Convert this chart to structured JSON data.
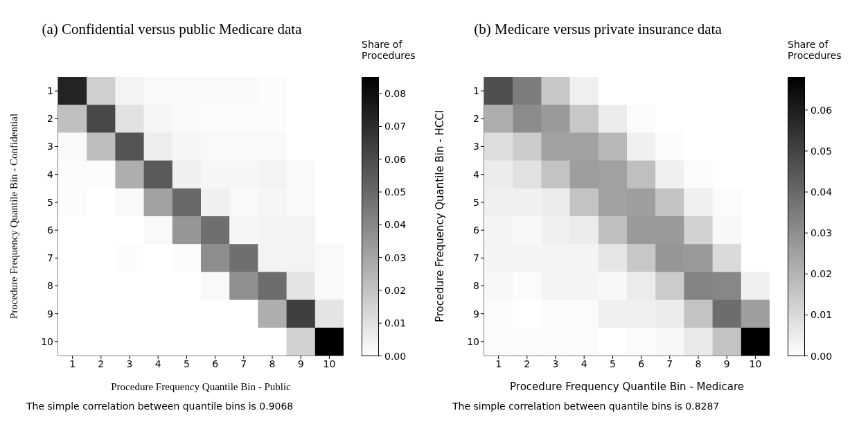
{
  "chart_data": [
    {
      "type": "heatmap",
      "title": "(a) Confidential versus public Medicare data",
      "xlabel": "Procedure Frequency Quantile Bin - Public",
      "ylabel": "Procedure Frequency Quantile Bin - Confidential",
      "clabel": "Share of Procedures",
      "categories": [
        "1",
        "2",
        "3",
        "4",
        "5",
        "6",
        "7",
        "8",
        "9",
        "10"
      ],
      "y_categories": [
        "1",
        "2",
        "3",
        "4",
        "5",
        "6",
        "7",
        "8",
        "9",
        "10"
      ],
      "cells": [
        [
          0.073,
          0.016,
          0.004,
          0.002,
          0.002,
          0.002,
          0.002,
          0.001,
          0,
          0
        ],
        [
          0.021,
          0.061,
          0.01,
          0.003,
          0.002,
          0.001,
          0.001,
          0.001,
          0,
          0
        ],
        [
          0.002,
          0.022,
          0.057,
          0.006,
          0.003,
          0.002,
          0.002,
          0.002,
          0,
          0
        ],
        [
          0.001,
          0.001,
          0.027,
          0.055,
          0.005,
          0.003,
          0.003,
          0.004,
          0.002,
          0
        ],
        [
          0.001,
          0,
          0.002,
          0.031,
          0.05,
          0.005,
          0.002,
          0.003,
          0.002,
          0
        ],
        [
          0,
          0,
          0,
          0.002,
          0.035,
          0.048,
          0.003,
          0.004,
          0.004,
          0
        ],
        [
          0,
          0,
          0.001,
          0,
          0.001,
          0.038,
          0.048,
          0.004,
          0.004,
          0.002
        ],
        [
          0,
          0,
          0,
          0,
          0,
          0.002,
          0.037,
          0.049,
          0.009,
          0.002
        ],
        [
          0,
          0,
          0,
          0,
          0,
          0,
          0,
          0.027,
          0.064,
          0.009
        ],
        [
          0,
          0,
          0,
          0,
          0,
          0,
          0,
          0,
          0.015,
          0.085
        ]
      ],
      "clim": [
        0,
        0.085
      ],
      "cticks": [
        {
          "value": 0,
          "label": "0.00"
        },
        0.01,
        0.02,
        0.03,
        0.04,
        0.05,
        0.06,
        0.07,
        0.08
      ],
      "annotations": [
        "The simple correlation between quantile bins is 0.9068"
      ]
    },
    {
      "type": "heatmap",
      "title": "(b) Medicare versus private insurance data",
      "xlabel": "Procedure Frequency Quantile Bin - Medicare",
      "ylabel": "Procedure Frequency Quantile Bin - HCCI",
      "clabel": "Share of Procedures",
      "categories": [
        "1",
        "2",
        "3",
        "4",
        "5",
        "6",
        "7",
        "8",
        "9",
        "10"
      ],
      "y_categories": [
        "1",
        "2",
        "3",
        "4",
        "5",
        "6",
        "7",
        "8",
        "9",
        "10"
      ],
      "cells": [
        [
          0.047,
          0.035,
          0.015,
          0.004,
          0,
          0,
          0,
          0,
          0,
          0
        ],
        [
          0.022,
          0.031,
          0.027,
          0.015,
          0.005,
          0.001,
          0,
          0,
          0,
          0
        ],
        [
          0.009,
          0.014,
          0.025,
          0.025,
          0.019,
          0.004,
          0.001,
          0,
          0,
          0
        ],
        [
          0.005,
          0.008,
          0.016,
          0.026,
          0.025,
          0.017,
          0.004,
          0.001,
          0,
          0
        ],
        [
          0.004,
          0.004,
          0.005,
          0.016,
          0.025,
          0.026,
          0.016,
          0.004,
          0.001,
          0
        ],
        [
          0.003,
          0.002,
          0.004,
          0.005,
          0.017,
          0.027,
          0.027,
          0.012,
          0.002,
          0
        ],
        [
          0.003,
          0.003,
          0.003,
          0.003,
          0.007,
          0.015,
          0.028,
          0.027,
          0.01,
          0
        ],
        [
          0.002,
          0.001,
          0.003,
          0.003,
          0.002,
          0.005,
          0.014,
          0.033,
          0.032,
          0.004
        ],
        [
          0.001,
          0,
          0.001,
          0.001,
          0.004,
          0.004,
          0.005,
          0.016,
          0.039,
          0.026
        ],
        [
          0.001,
          0.001,
          0.001,
          0.001,
          0,
          0.001,
          0.002,
          0.006,
          0.016,
          0.068
        ]
      ],
      "clim": [
        0,
        0.068
      ],
      "cticks": [
        {
          "value": 0,
          "label": "0.00"
        },
        0.01,
        0.02,
        0.03,
        0.04,
        0.05,
        0.06
      ],
      "annotations": [
        "The simple correlation between quantile bins is 0.8287"
      ]
    }
  ]
}
